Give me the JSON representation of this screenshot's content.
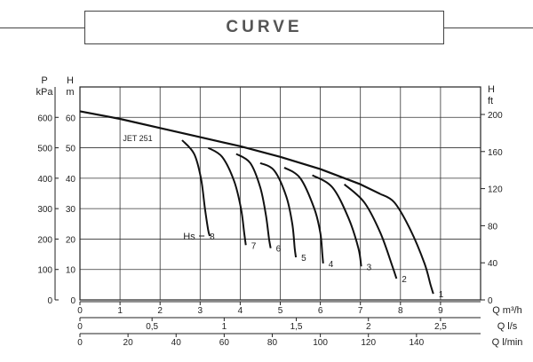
{
  "title": "CURVE",
  "chart_data": {
    "type": "line",
    "model_label": "JET 251",
    "hs_label": "Hs",
    "left_axes": [
      {
        "unit_top": "P",
        "unit_bottom": "kPa",
        "ticks": [
          "0",
          "100",
          "200",
          "300",
          "400",
          "500",
          "600"
        ],
        "values": [
          0,
          100,
          200,
          300,
          400,
          500,
          600
        ]
      },
      {
        "unit_top": "H",
        "unit_bottom": "m",
        "ticks": [
          "0",
          "10",
          "20",
          "30",
          "40",
          "50",
          "60"
        ],
        "values": [
          0,
          10,
          20,
          30,
          40,
          50,
          60
        ]
      }
    ],
    "right_axis": {
      "unit_top": "H",
      "unit_bottom": "ft",
      "ticks": [
        "0",
        "40",
        "80",
        "120",
        "160",
        "200"
      ],
      "values": [
        0,
        40,
        80,
        120,
        160,
        200
      ]
    },
    "x_axes": [
      {
        "label": "Q m³/h",
        "ticks": [
          "0",
          "1",
          "2",
          "3",
          "4",
          "5",
          "6",
          "7",
          "8",
          "9"
        ],
        "values": [
          0,
          1,
          2,
          3,
          4,
          5,
          6,
          7,
          8,
          9
        ]
      },
      {
        "label": "Q l/s",
        "ticks": [
          "0",
          "0,5",
          "1",
          "1,5",
          "2",
          "2,5"
        ],
        "values": [
          0,
          0.5,
          1,
          1.5,
          2,
          2.5
        ]
      },
      {
        "label": "Q l/min",
        "ticks": [
          "0",
          "20",
          "40",
          "60",
          "80",
          "100",
          "120",
          "140"
        ],
        "values": [
          0,
          20,
          40,
          60,
          80,
          100,
          120,
          140
        ]
      }
    ],
    "xlim": [
      0,
      10
    ],
    "ylim": [
      0,
      70
    ],
    "envelope": [
      [
        0,
        62
      ],
      [
        1,
        59.5
      ],
      [
        2,
        56.5
      ],
      [
        3,
        53.5
      ],
      [
        4,
        50.5
      ],
      [
        5,
        47
      ],
      [
        6,
        43
      ],
      [
        7,
        38
      ],
      [
        7.5,
        34.8
      ]
    ],
    "curves": [
      {
        "name": "8",
        "points": [
          [
            2.55,
            52.5
          ],
          [
            2.85,
            48
          ],
          [
            3.02,
            40
          ],
          [
            3.12,
            30
          ],
          [
            3.2,
            23
          ],
          [
            3.24,
            21
          ]
        ]
      },
      {
        "name": "7",
        "points": [
          [
            3.2,
            50
          ],
          [
            3.55,
            47
          ],
          [
            3.85,
            39
          ],
          [
            4.02,
            30
          ],
          [
            4.1,
            22
          ],
          [
            4.14,
            18
          ]
        ]
      },
      {
        "name": "6",
        "points": [
          [
            3.9,
            48
          ],
          [
            4.25,
            45
          ],
          [
            4.5,
            37
          ],
          [
            4.64,
            28
          ],
          [
            4.72,
            20
          ],
          [
            4.76,
            17
          ]
        ]
      },
      {
        "name": "5",
        "points": [
          [
            4.5,
            45
          ],
          [
            4.85,
            42.5
          ],
          [
            5.15,
            34
          ],
          [
            5.3,
            25
          ],
          [
            5.36,
            17
          ],
          [
            5.39,
            14
          ]
        ]
      },
      {
        "name": "4",
        "points": [
          [
            5.1,
            43.5
          ],
          [
            5.5,
            40
          ],
          [
            5.85,
            30
          ],
          [
            6.0,
            22
          ],
          [
            6.05,
            15
          ],
          [
            6.07,
            12
          ]
        ]
      },
      {
        "name": "3",
        "points": [
          [
            5.8,
            41
          ],
          [
            6.3,
            37
          ],
          [
            6.7,
            27
          ],
          [
            6.95,
            17
          ],
          [
            7.02,
            11
          ]
        ]
      },
      {
        "name": "2",
        "points": [
          [
            6.6,
            38
          ],
          [
            7.1,
            32
          ],
          [
            7.5,
            22
          ],
          [
            7.8,
            11
          ],
          [
            7.9,
            7
          ]
        ]
      },
      {
        "name": "1",
        "points": [
          [
            7.5,
            34.8
          ],
          [
            7.85,
            32
          ],
          [
            8.25,
            23
          ],
          [
            8.6,
            12
          ],
          [
            8.75,
            5
          ],
          [
            8.82,
            2
          ]
        ]
      }
    ]
  }
}
